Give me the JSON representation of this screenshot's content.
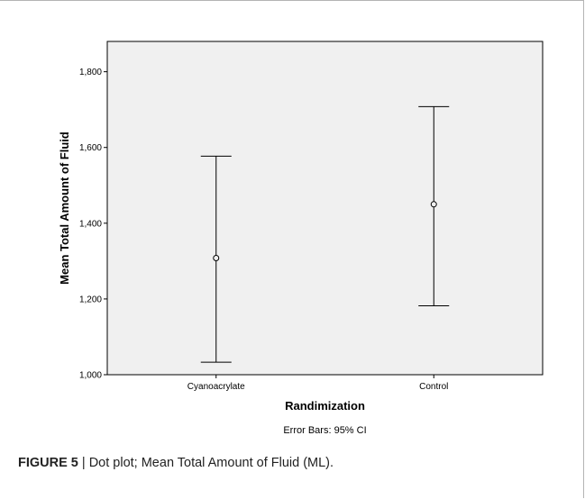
{
  "colors": {
    "plot_background": "#f0f0f0",
    "axis": "#000000",
    "marker": "#000000"
  },
  "chart_data": {
    "type": "errorbar",
    "categories": [
      "Cyanoacrylate",
      "Control"
    ],
    "series": [
      {
        "marker": "open-circle",
        "values": [
          1308,
          1450
        ],
        "lower": [
          1033,
          1182
        ],
        "upper": [
          1577,
          1708
        ]
      }
    ],
    "xlabel": "Randimization",
    "ylabel": "Mean Total Amount of Fluid",
    "ylim": [
      1000,
      1880
    ],
    "yticks": [
      1000,
      1200,
      1400,
      1600,
      1800
    ],
    "ytick_labels": [
      "1,000",
      "1,200",
      "1,400",
      "1,600",
      "1,800"
    ],
    "grid": false,
    "footnote": "Error Bars: 95% CI"
  },
  "caption": {
    "label": "FIGURE 5",
    "separator": " | ",
    "text": "Dot plot; Mean Total Amount of Fluid (ML)."
  }
}
